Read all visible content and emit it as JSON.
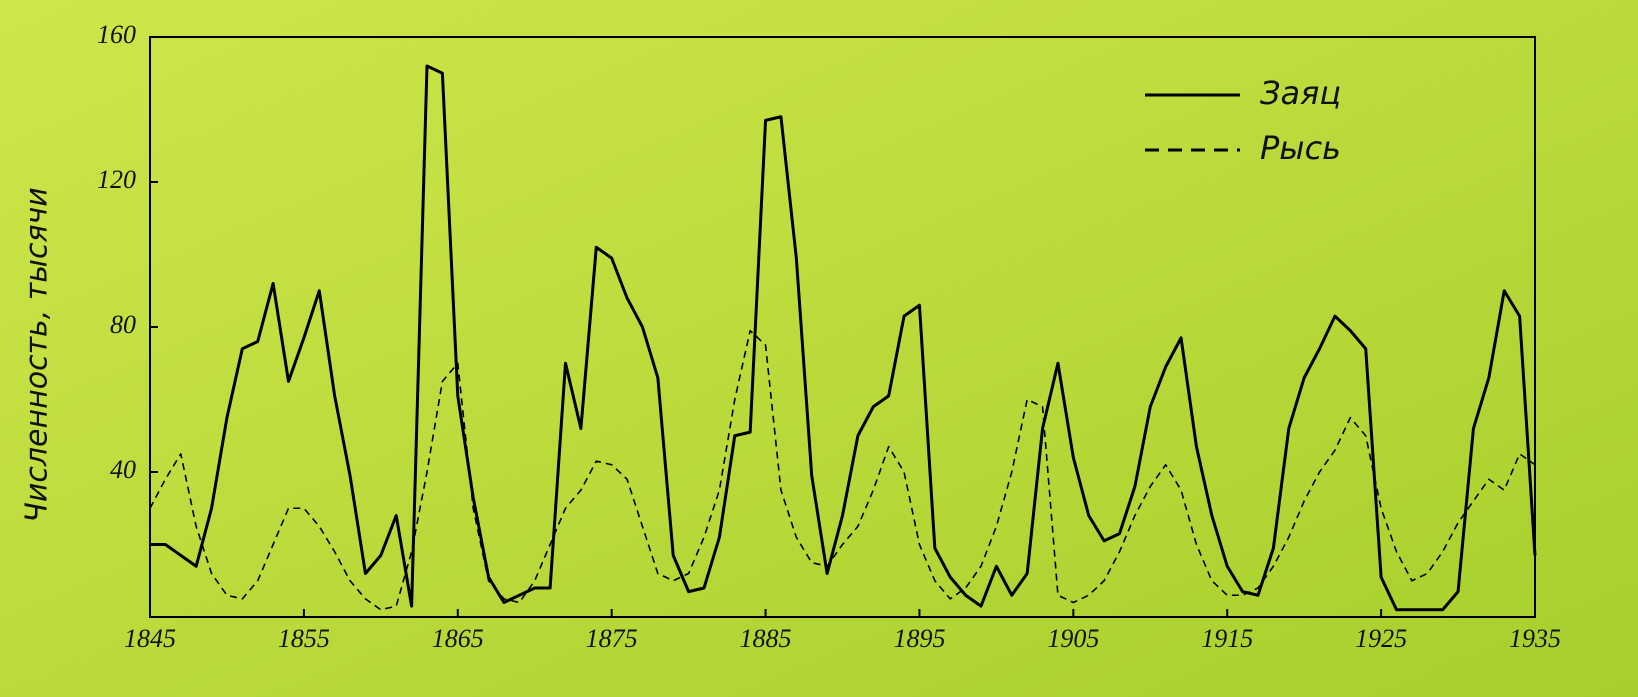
{
  "chart_data": {
    "type": "line",
    "y_label": "Численность, тысячи",
    "x": [
      1845,
      1846,
      1847,
      1848,
      1849,
      1850,
      1851,
      1852,
      1853,
      1854,
      1855,
      1856,
      1857,
      1858,
      1859,
      1860,
      1861,
      1862,
      1863,
      1864,
      1865,
      1866,
      1867,
      1868,
      1869,
      1870,
      1871,
      1872,
      1873,
      1874,
      1875,
      1876,
      1877,
      1878,
      1879,
      1880,
      1881,
      1882,
      1883,
      1884,
      1885,
      1886,
      1887,
      1888,
      1889,
      1890,
      1891,
      1892,
      1893,
      1894,
      1895,
      1896,
      1897,
      1898,
      1899,
      1900,
      1901,
      1902,
      1903,
      1904,
      1905,
      1906,
      1907,
      1908,
      1909,
      1910,
      1911,
      1912,
      1913,
      1914,
      1915,
      1916,
      1917,
      1918,
      1919,
      1920,
      1921,
      1922,
      1923,
      1924,
      1925,
      1926,
      1927,
      1928,
      1929,
      1930,
      1931,
      1932,
      1933,
      1934,
      1935
    ],
    "series": [
      {
        "name": "Заяц",
        "color": "#000000",
        "linestyle": "solid",
        "values": [
          20,
          20,
          17,
          14,
          30,
          55,
          74,
          76,
          92,
          65,
          77,
          90,
          61,
          39,
          12,
          17,
          28,
          3,
          152,
          150,
          61,
          33,
          11,
          4,
          6,
          8,
          8,
          70,
          52,
          102,
          99,
          88,
          80,
          66,
          17,
          7,
          8,
          22,
          50,
          51,
          137,
          138,
          99,
          39,
          12,
          28,
          50,
          58,
          61,
          83,
          86,
          19,
          11,
          6,
          3,
          14,
          6,
          12,
          52,
          70,
          44,
          28,
          21,
          23,
          36,
          58,
          69,
          77,
          47,
          28,
          14,
          7,
          6,
          19,
          52,
          66,
          74,
          83,
          79,
          74,
          11,
          2,
          2,
          2,
          2,
          7,
          52,
          66,
          90,
          83,
          17
        ]
      },
      {
        "name": "Рысь",
        "color": "#000000",
        "linestyle": "dashed",
        "values": [
          30,
          38,
          45,
          25,
          12,
          6,
          5,
          10,
          20,
          30,
          30,
          25,
          18,
          10,
          5,
          2,
          3,
          18,
          40,
          65,
          70,
          30,
          10,
          5,
          4,
          10,
          20,
          30,
          35,
          43,
          42,
          38,
          25,
          12,
          10,
          12,
          22,
          35,
          60,
          79,
          75,
          35,
          22,
          15,
          14,
          20,
          25,
          35,
          47,
          40,
          20,
          10,
          5,
          8,
          14,
          25,
          40,
          60,
          58,
          6,
          4,
          6,
          10,
          18,
          28,
          36,
          42,
          35,
          20,
          10,
          6,
          6,
          8,
          14,
          22,
          32,
          40,
          46,
          55,
          50,
          30,
          18,
          10,
          12,
          18,
          26,
          32,
          38,
          35,
          45,
          42
        ]
      }
    ],
    "xlim": [
      1845,
      1935
    ],
    "xticks": [
      1845,
      1855,
      1865,
      1875,
      1885,
      1895,
      1905,
      1915,
      1925,
      1935
    ],
    "ylim": [
      0,
      160
    ],
    "yticks": [
      40,
      80,
      120,
      160
    ],
    "legend": "upper right"
  }
}
